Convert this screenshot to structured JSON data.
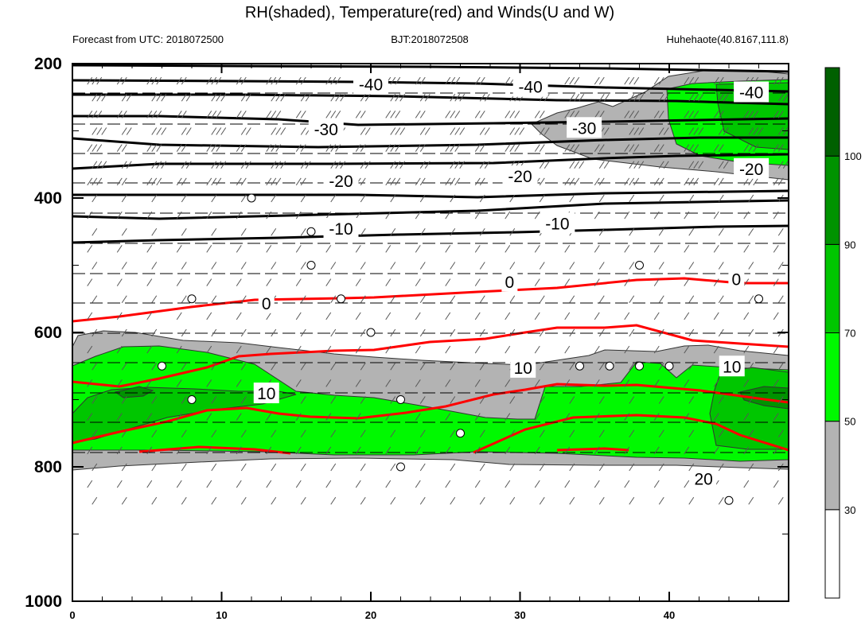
{
  "title": "RH(shaded), Temperature(red) and Winds(U and W)",
  "header": {
    "left": "Forecast from UTC: 2018072500",
    "center": "BJT:2018072508",
    "right": "Huhehaote(40.8167,111.8)"
  },
  "colors": {
    "gray": "#b3b3b3",
    "green_light": "#00f900",
    "green_mid": "#00c600",
    "green_dark": "#009300",
    "green_darkest": "#006000",
    "temperature_line": "#ff0000",
    "contour_line": "#000000"
  },
  "chart_data": {
    "type": "contour",
    "x_ticks": [
      0,
      10,
      20,
      30,
      40
    ],
    "xlim": [
      0,
      48
    ],
    "y_ticks": [
      200,
      400,
      600,
      800,
      1000
    ],
    "ylim": [
      1000,
      200
    ],
    "colorbar": {
      "levels": [
        30,
        50,
        70,
        90,
        100
      ],
      "colors": [
        "#ffffff",
        "#b3b3b3",
        "#00f900",
        "#00c600",
        "#009300",
        "#006000"
      ]
    },
    "temperature_labels_black": [
      {
        "text": "-40",
        "x": 20,
        "y": 230
      },
      {
        "text": "-40",
        "x": 30.7,
        "y": 234
      },
      {
        "text": "-40",
        "x": 45.5,
        "y": 242
      },
      {
        "text": "-30",
        "x": 17,
        "y": 297
      },
      {
        "text": "-30",
        "x": 34.3,
        "y": 295
      },
      {
        "text": "-20",
        "x": 18,
        "y": 374
      },
      {
        "text": "-20",
        "x": 30,
        "y": 367
      },
      {
        "text": "-20",
        "x": 45.5,
        "y": 356
      },
      {
        "text": "-10",
        "x": 18,
        "y": 445
      },
      {
        "text": "-10",
        "x": 32.5,
        "y": 437
      },
      {
        "text": "0",
        "x": 13,
        "y": 556
      },
      {
        "text": "0",
        "x": 29.3,
        "y": 524
      },
      {
        "text": "0",
        "x": 44.5,
        "y": 520
      }
    ],
    "temperature_labels_red": [
      {
        "text": "10",
        "x": 13,
        "y": 690
      },
      {
        "text": "10",
        "x": 30.2,
        "y": 652
      },
      {
        "text": "10",
        "x": 44.2,
        "y": 650
      },
      {
        "text": "20",
        "x": 42.3,
        "y": 817
      }
    ],
    "vertical_motion_circles": [
      {
        "x": 12,
        "y": 400
      },
      {
        "x": 16,
        "y": 450
      },
      {
        "x": 16,
        "y": 500
      },
      {
        "x": 8,
        "y": 550
      },
      {
        "x": 18,
        "y": 550
      },
      {
        "x": 20,
        "y": 600
      },
      {
        "x": 38,
        "y": 500
      },
      {
        "x": 46,
        "y": 550
      },
      {
        "x": 6,
        "y": 650
      },
      {
        "x": 34,
        "y": 650
      },
      {
        "x": 36,
        "y": 650
      },
      {
        "x": 38,
        "y": 650
      },
      {
        "x": 40,
        "y": 650
      },
      {
        "x": 8,
        "y": 700
      },
      {
        "x": 22,
        "y": 700
      },
      {
        "x": 26,
        "y": 750
      },
      {
        "x": 22,
        "y": 800
      },
      {
        "x": 44,
        "y": 850
      }
    ]
  }
}
